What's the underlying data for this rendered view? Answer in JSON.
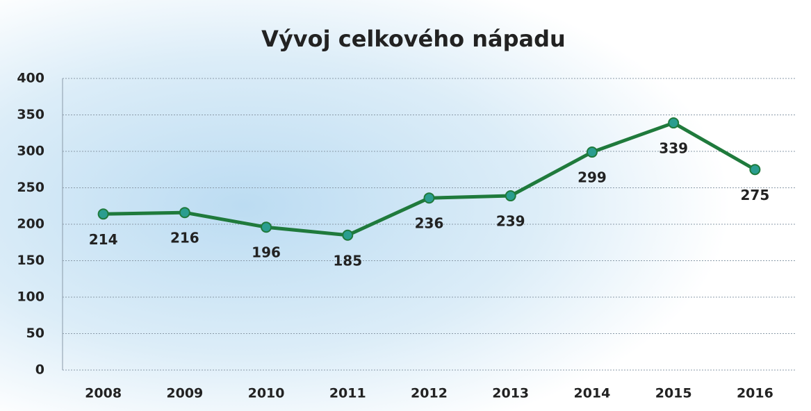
{
  "chart_data": {
    "type": "line",
    "title": "Vývoj celkového nápadu",
    "categories": [
      "2008",
      "2009",
      "2010",
      "2011",
      "2012",
      "2013",
      "2014",
      "2015",
      "2016"
    ],
    "values": [
      214,
      216,
      196,
      185,
      236,
      239,
      299,
      339,
      275
    ],
    "color": "#1f7a3c",
    "marker_color": "#2a9d8f",
    "ylim": [
      0,
      400
    ],
    "yticks": [
      0,
      50,
      100,
      150,
      200,
      250,
      300,
      350,
      400
    ],
    "grid": true
  }
}
